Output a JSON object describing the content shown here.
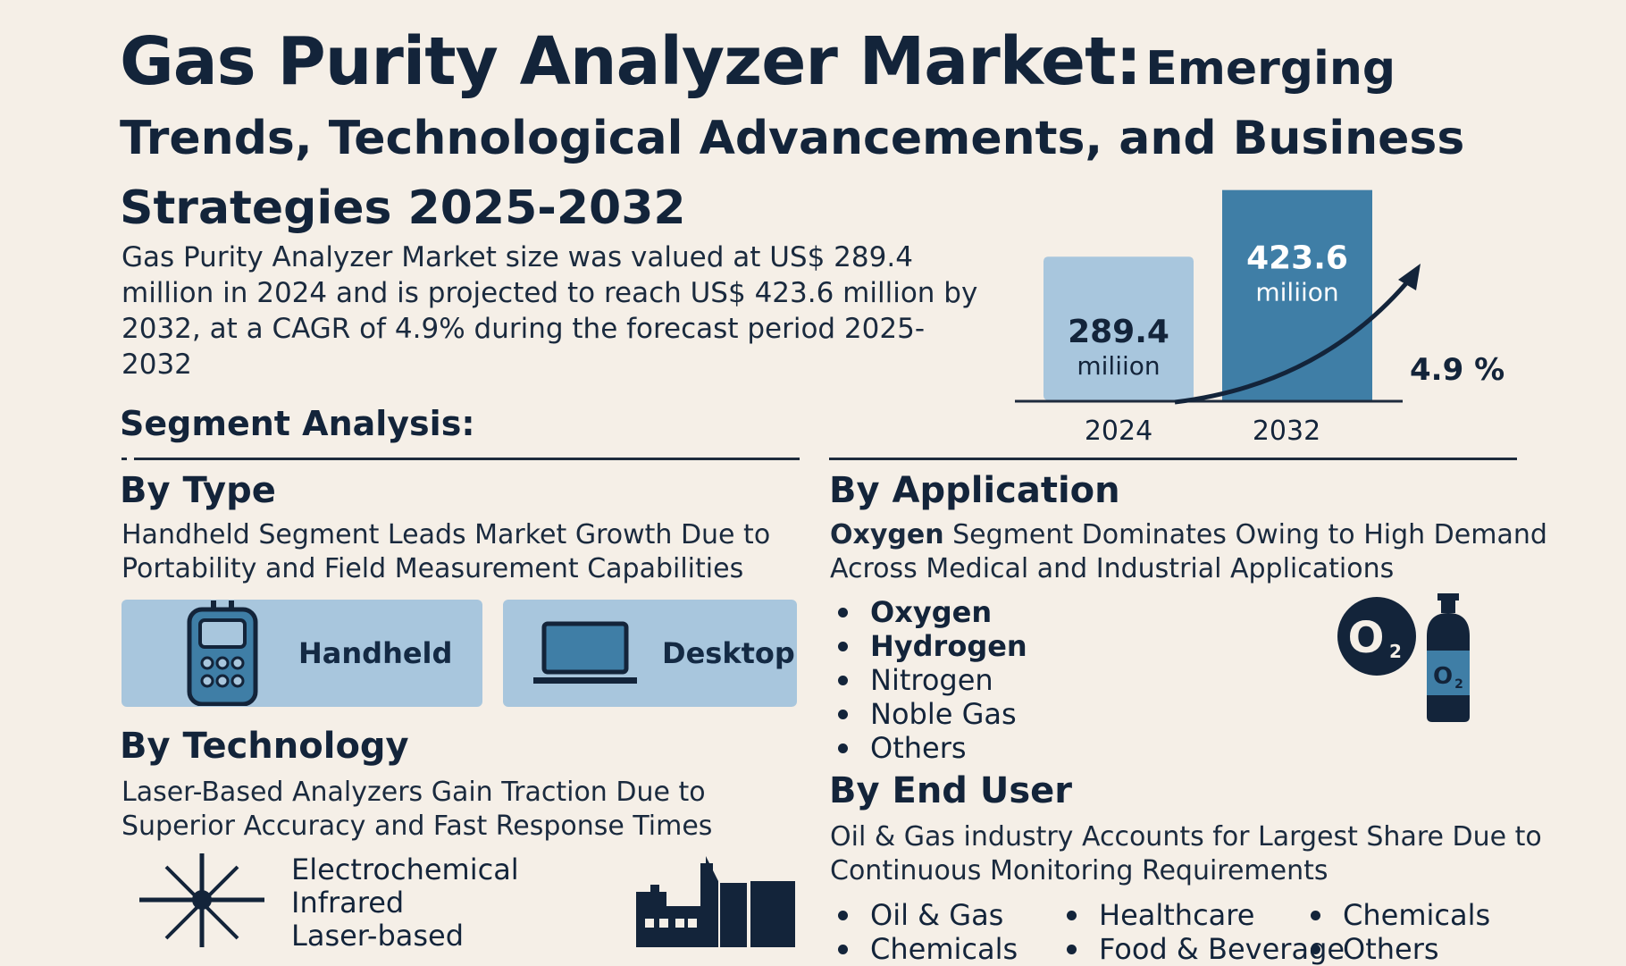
{
  "title": {
    "main": "Gas Purity Analyzer Market:",
    "rest": "Emerging Trends, Technological Advancements, and Business Strategies 2025-2032"
  },
  "summary": "Gas Purity Analyzer Market size was valued at US$ 289.4 million in 2024 and is projected to reach US$ 423.6 million by 2032, at a CAGR of 4.9% during the forecast period 2025-2032",
  "segment_heading": "Segment Analysis:",
  "by_type": {
    "heading": "By Type",
    "subheading": "Handheld Segment Leads Market Growth Due to Portability and Field Measurement Capabilities",
    "cards": [
      {
        "label": "Handheld",
        "icon": "handheld-analyzer-icon"
      },
      {
        "label": "Desktop",
        "icon": "laptop-icon"
      }
    ]
  },
  "by_technology": {
    "heading": "By Technology",
    "subheading": "Laser-Based Analyzers Gain Traction Due to Superior Accuracy and Fast Response Times",
    "items": [
      "Electrochemical",
      "Infrared",
      "Laser-based"
    ],
    "icons": [
      "laser-star-icon",
      "factory-icon"
    ]
  },
  "by_application": {
    "heading": "By Application",
    "subheading_bold": "Oxygen",
    "subheading_rest": " Segment Dominates Owing to High Demand Across Medical and Industrial Applications",
    "items": [
      "Oxygen",
      "Hydrogen",
      "Nitrogen",
      "Noble Gas",
      "Others"
    ],
    "icon_labels": {
      "circle": "O",
      "circle_sub": "2",
      "cylinder": "O",
      "cylinder_sub": "2"
    }
  },
  "by_end_user": {
    "heading": "By End User",
    "subheading": "Oil & Gas industry Accounts for Largest Share Due to Continuous Monitoring Requirements",
    "items_row1": [
      "Oil & Gas",
      "Healthcare",
      "Chemicals"
    ],
    "items_row2": [
      "Chemicals",
      "Food & Beverage",
      "Others"
    ]
  },
  "colors": {
    "background": "#f5efe7",
    "navy": "#13243a",
    "bar_2024": "#a8c6dd",
    "bar_2032": "#3f7ea6",
    "card": "#a8c6dd"
  },
  "chart_data": {
    "type": "bar",
    "categories": [
      "2024",
      "2032"
    ],
    "values": [
      289.4,
      423.6
    ],
    "value_labels": [
      "289.4",
      "423.6"
    ],
    "value_units": [
      "miliion",
      "miliion"
    ],
    "annotation": "4.9 %",
    "ylim": [
      0,
      450
    ]
  }
}
